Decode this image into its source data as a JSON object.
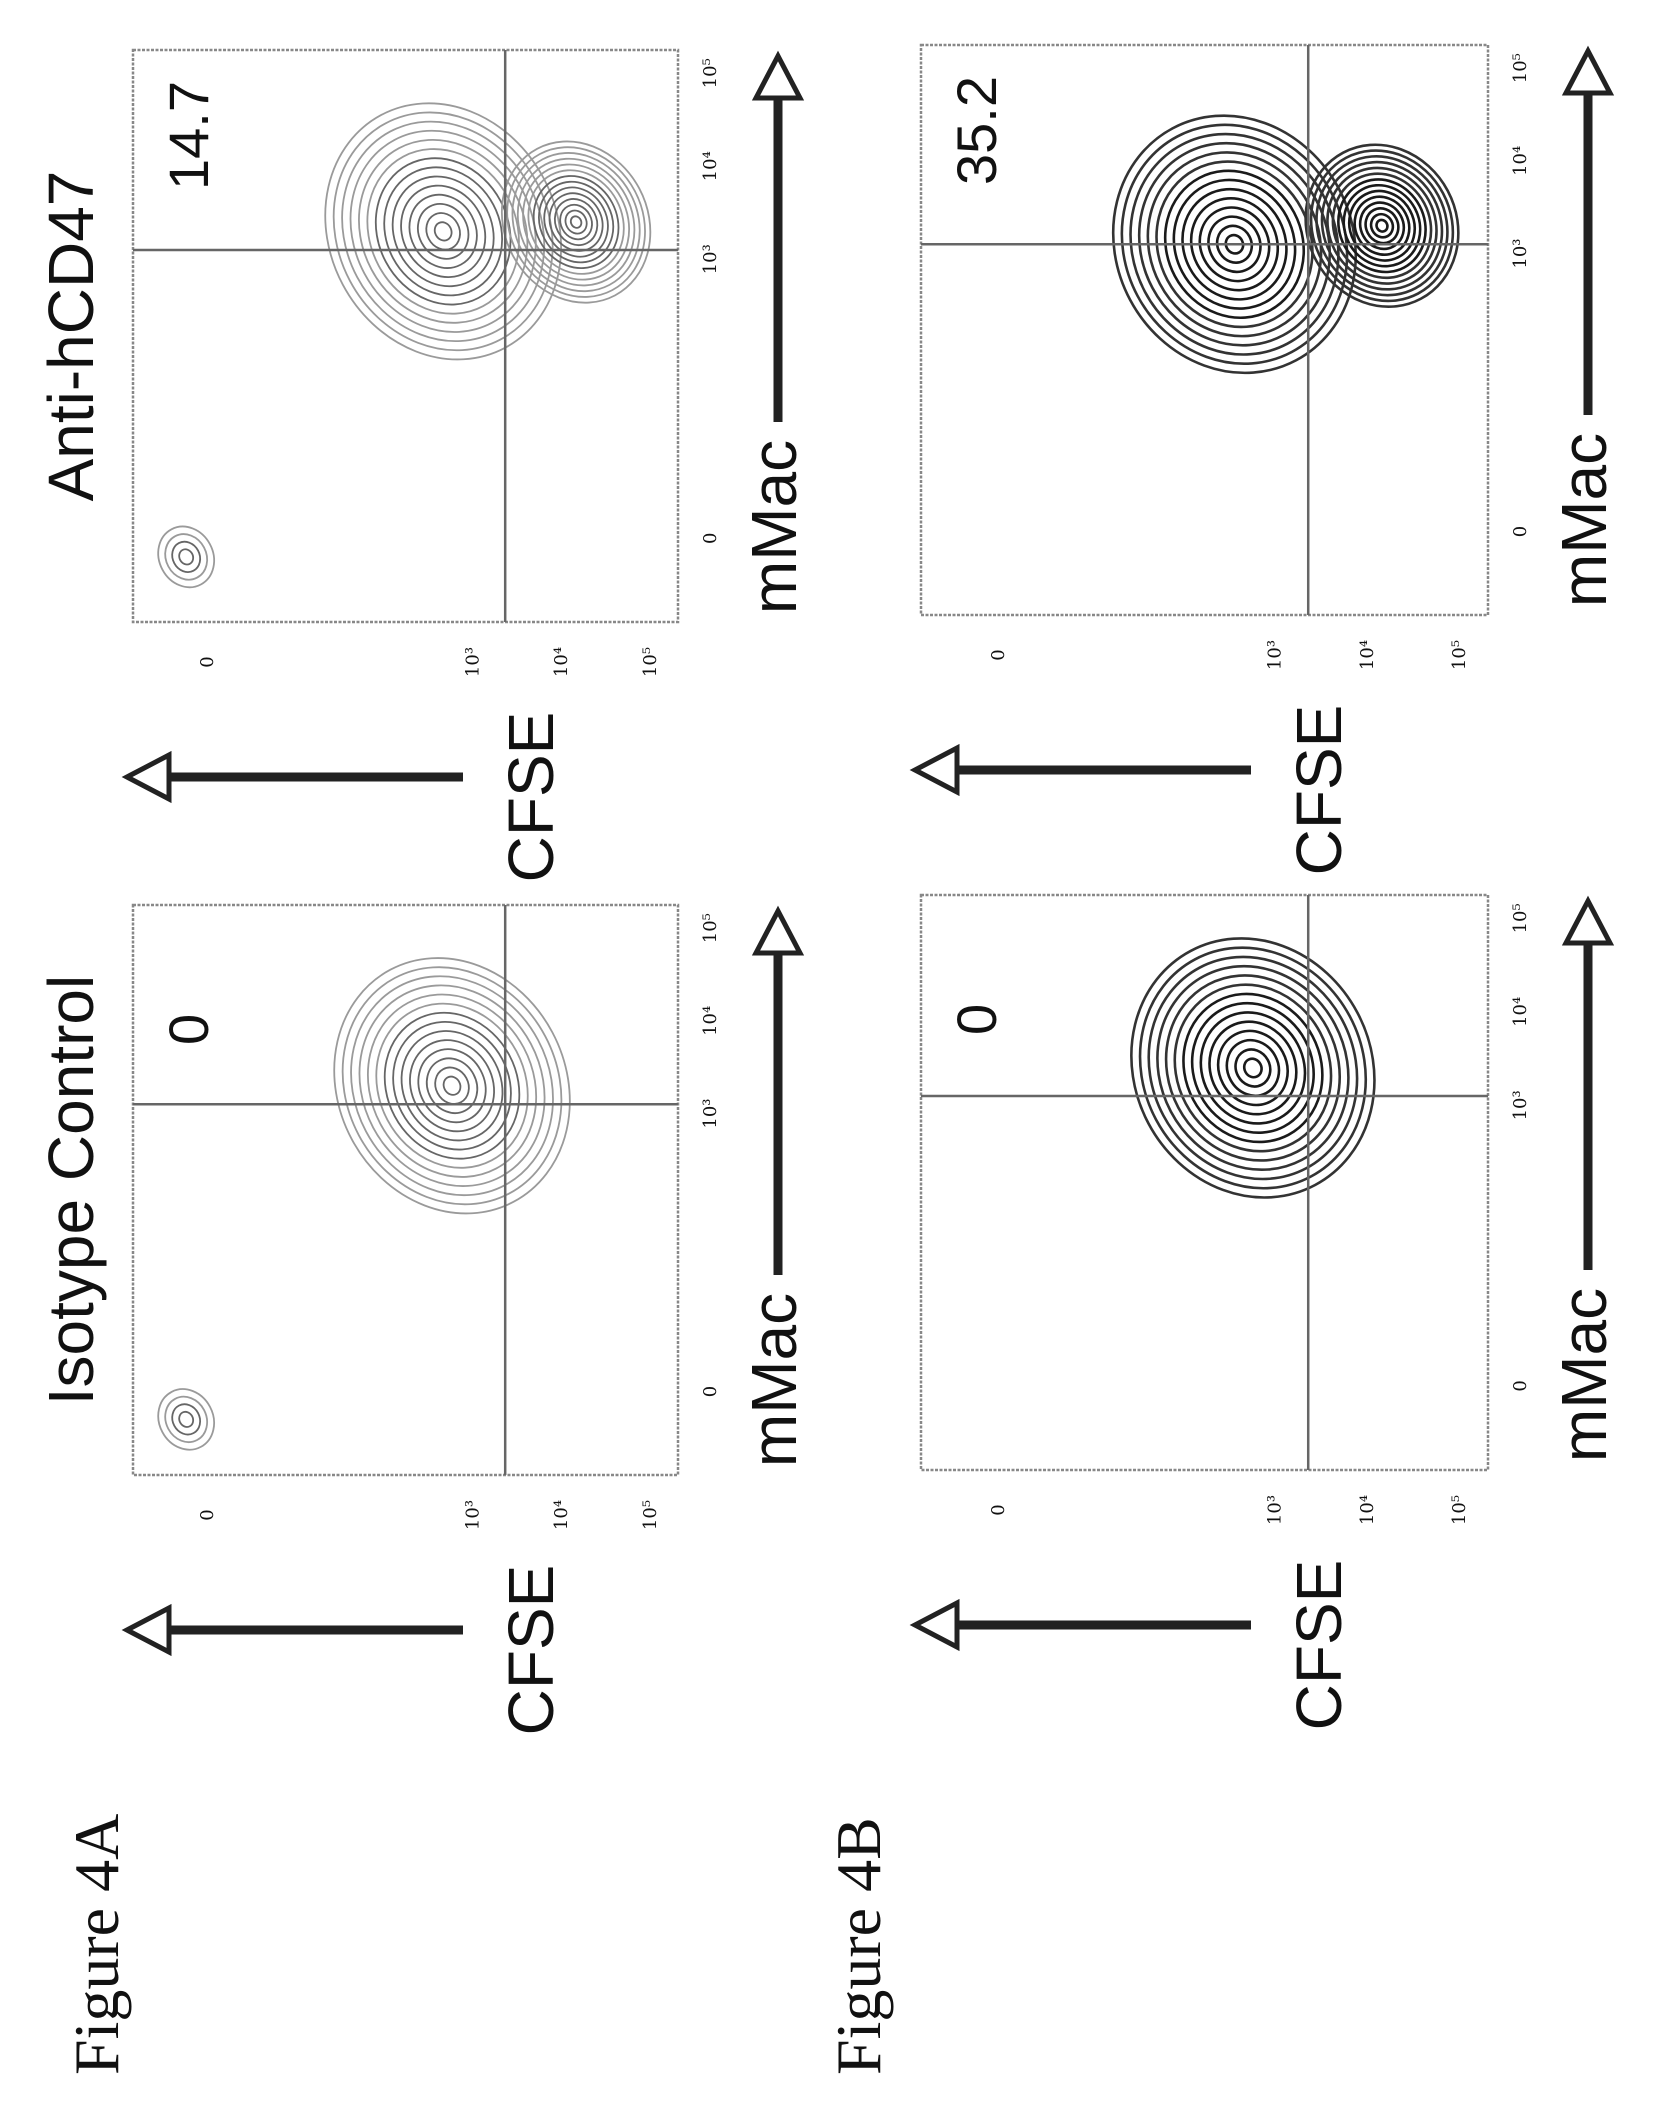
{
  "figure_labels": {
    "a": "Figure 4A",
    "b": "Figure 4B"
  },
  "axes": {
    "x_label": "mMac",
    "y_label": "CFSE",
    "x_ticks": [
      "0",
      "10³",
      "10⁴",
      "10⁵"
    ],
    "y_ticks": [
      "10⁵",
      "10⁴",
      "10³",
      "0"
    ]
  },
  "colors": {
    "ink": "#222222",
    "contour_light": "#8a8a8a",
    "contour_dark": "#1a1a1a",
    "frame": "#888888"
  },
  "chart_data": [
    {
      "type": "contour",
      "panel": "4A-left",
      "title": "Isotype Control",
      "xlabel": "mMac",
      "ylabel": "CFSE",
      "upper_right_percent": "0",
      "populations": [
        {
          "center_log": [
            3.3,
            2.7
          ],
          "peak": "main"
        },
        {
          "center_log": [
            -0.3,
            -0.3
          ],
          "peak": "minor"
        }
      ]
    },
    {
      "type": "contour",
      "panel": "4A-right",
      "title": "Anti-hCD47",
      "xlabel": "mMac",
      "ylabel": "CFSE",
      "upper_right_percent": "14.7",
      "populations": [
        {
          "center_log": [
            3.3,
            2.6
          ],
          "peak": "main"
        },
        {
          "center_log": [
            3.4,
            4.1
          ],
          "peak": "CFSE-high"
        },
        {
          "center_log": [
            -0.2,
            -0.3
          ],
          "peak": "minor"
        }
      ]
    },
    {
      "type": "contour",
      "panel": "4B-left",
      "title": "",
      "xlabel": "mMac",
      "ylabel": "CFSE",
      "upper_right_percent": "0",
      "populations": [
        {
          "center_log": [
            3.4,
            2.7
          ],
          "peak": "main"
        }
      ]
    },
    {
      "type": "contour",
      "panel": "4B-right",
      "title": "",
      "xlabel": "mMac",
      "ylabel": "CFSE",
      "upper_right_percent": "35.2",
      "populations": [
        {
          "center_log": [
            3.1,
            2.5
          ],
          "peak": "main"
        },
        {
          "center_log": [
            3.3,
            4.1
          ],
          "peak": "CFSE-high"
        }
      ]
    }
  ]
}
